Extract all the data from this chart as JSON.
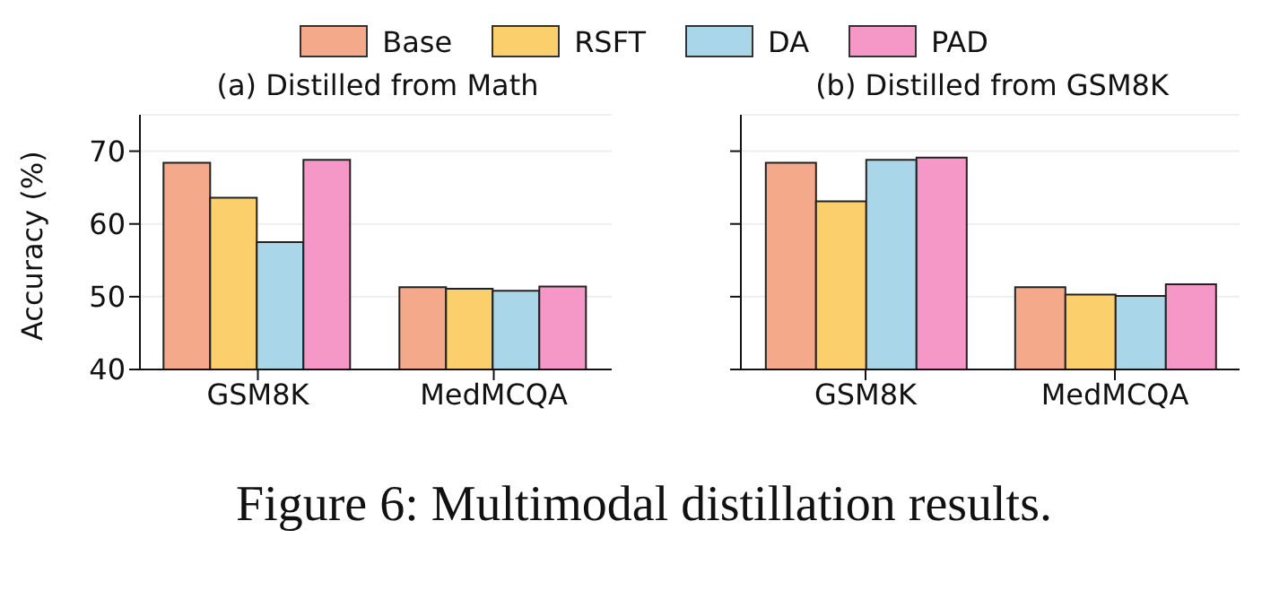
{
  "chart_data": [
    {
      "type": "bar",
      "title": "(a) Distilled from Math",
      "ylabel": "Accuracy (%)",
      "categories": [
        "GSM8K",
        "MedMCQA"
      ],
      "series": [
        {
          "name": "Base",
          "color": "#f4a98a",
          "values": [
            68.4,
            51.3
          ]
        },
        {
          "name": "RSFT",
          "color": "#fbcf6b",
          "values": [
            63.6,
            51.1
          ]
        },
        {
          "name": "DA",
          "color": "#aad6ea",
          "values": [
            57.5,
            50.8
          ]
        },
        {
          "name": "PAD",
          "color": "#f598c8",
          "values": [
            68.8,
            51.4
          ]
        }
      ],
      "ylim": [
        40,
        75
      ],
      "yticks": [
        40,
        50,
        60,
        70
      ],
      "grid": "y",
      "legend": "top",
      "annotations": [
        "Figure 6: Multimodal distillation results."
      ]
    },
    {
      "type": "bar",
      "title": "(b) Distilled from GSM8K",
      "categories": [
        "GSM8K",
        "MedMCQA"
      ],
      "series": [
        {
          "color": "#f4a98a",
          "values": [
            68.4,
            51.3
          ]
        },
        {
          "color": "#fbcf6b",
          "values": [
            63.1,
            50.3
          ]
        },
        {
          "color": "#aad6ea",
          "values": [
            68.8,
            50.1
          ]
        },
        {
          "color": "#f598c8",
          "values": [
            69.1,
            51.7
          ]
        }
      ],
      "ylim": [
        40,
        75
      ],
      "yticks": [
        40,
        50,
        60,
        70
      ],
      "grid": "y",
      "tick_labels": "x"
    }
  ]
}
